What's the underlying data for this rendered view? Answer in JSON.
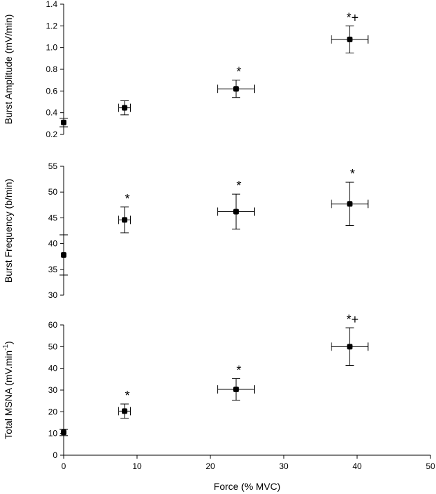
{
  "chart_data": [
    {
      "type": "scatter",
      "ylabel": "Burst Amplitude (mV/min)",
      "xlabel": "",
      "xlim": [
        0,
        50
      ],
      "ylim": [
        0.2,
        1.4
      ],
      "yticks": [
        0.2,
        0.4,
        0.6,
        0.8,
        1.0,
        1.2,
        1.4
      ],
      "ytick_labels": [
        "0.2",
        "0.4",
        "0.6",
        "0.8",
        "1.0",
        "1.2",
        "1.4"
      ],
      "points": [
        {
          "x": 0,
          "y": 0.31,
          "xerr": 0,
          "yerr": 0.04,
          "label": ""
        },
        {
          "x": 8.3,
          "y": 0.445,
          "xerr": 0.8,
          "yerr": 0.065,
          "label": ""
        },
        {
          "x": 23.5,
          "y": 0.62,
          "xerr": 2.5,
          "yerr": 0.08,
          "label": "*"
        },
        {
          "x": 39.0,
          "y": 1.075,
          "xerr": 2.5,
          "yerr": 0.125,
          "label": "*+"
        }
      ]
    },
    {
      "type": "scatter",
      "ylabel": "Burst Frequency (b/min)",
      "xlabel": "",
      "xlim": [
        0,
        50
      ],
      "ylim": [
        30,
        55
      ],
      "yticks": [
        30,
        35,
        40,
        45,
        50,
        55
      ],
      "ytick_labels": [
        "30",
        "35",
        "40",
        "45",
        "50",
        "55"
      ],
      "points": [
        {
          "x": 0,
          "y": 37.8,
          "xerr": 0,
          "yerr": 3.9,
          "label": ""
        },
        {
          "x": 8.3,
          "y": 44.6,
          "xerr": 0.8,
          "yerr": 2.5,
          "label": "*"
        },
        {
          "x": 23.5,
          "y": 46.2,
          "xerr": 2.5,
          "yerr": 3.4,
          "label": "*"
        },
        {
          "x": 39.0,
          "y": 47.7,
          "xerr": 2.5,
          "yerr": 4.2,
          "label": "*"
        }
      ]
    },
    {
      "type": "scatter",
      "ylabel": "Total MSNA (mV.min",
      "ylabel_sup": "-1",
      "ylabel_close": ")",
      "xlabel": "Force (% MVC)",
      "xlim": [
        0,
        50
      ],
      "ylim": [
        0,
        60
      ],
      "yticks": [
        0,
        10,
        20,
        30,
        40,
        50,
        60
      ],
      "ytick_labels": [
        "0",
        "10",
        "20",
        "30",
        "40",
        "50",
        "60"
      ],
      "xticks": [
        0,
        10,
        20,
        30,
        40,
        50
      ],
      "xtick_labels": [
        "0",
        "10",
        "20",
        "30",
        "40",
        "50"
      ],
      "points": [
        {
          "x": 0,
          "y": 10.5,
          "xerr": 0,
          "yerr": 1.5,
          "label": ""
        },
        {
          "x": 8.3,
          "y": 20.3,
          "xerr": 0.8,
          "yerr": 3.3,
          "label": "*"
        },
        {
          "x": 23.5,
          "y": 30.3,
          "xerr": 2.5,
          "yerr": 5.0,
          "label": "*"
        },
        {
          "x": 39.0,
          "y": 50.0,
          "xerr": 2.5,
          "yerr": 8.7,
          "label": "*+"
        }
      ]
    }
  ]
}
